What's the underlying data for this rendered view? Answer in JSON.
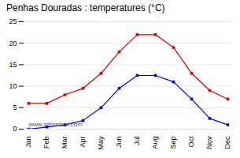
{
  "chart_data": {
    "type": "line",
    "title": "Penhas Douradas : temperatures (°C)",
    "categories": [
      "Jan",
      "Feb",
      "Mar",
      "Apr",
      "May",
      "Jun",
      "Jul",
      "Aug",
      "Sep",
      "Oct",
      "Nov",
      "Dec"
    ],
    "series": [
      {
        "color": "#cc0000",
        "marker": "square",
        "values": [
          6.0,
          6.0,
          8.0,
          9.5,
          13.0,
          18.0,
          22.0,
          22.0,
          19.0,
          13.0,
          9.0,
          7.0
        ]
      },
      {
        "color": "#0000cc",
        "marker": "square",
        "values": [
          0.0,
          0.5,
          1.0,
          2.0,
          5.0,
          9.5,
          12.5,
          12.5,
          11.0,
          7.0,
          2.5,
          1.0
        ]
      }
    ],
    "ylim": [
      0,
      25
    ],
    "yticks": [
      0,
      5,
      10,
      15,
      20,
      25
    ],
    "grid": true,
    "annotations": [
      "www.allmetsat.com"
    ]
  }
}
